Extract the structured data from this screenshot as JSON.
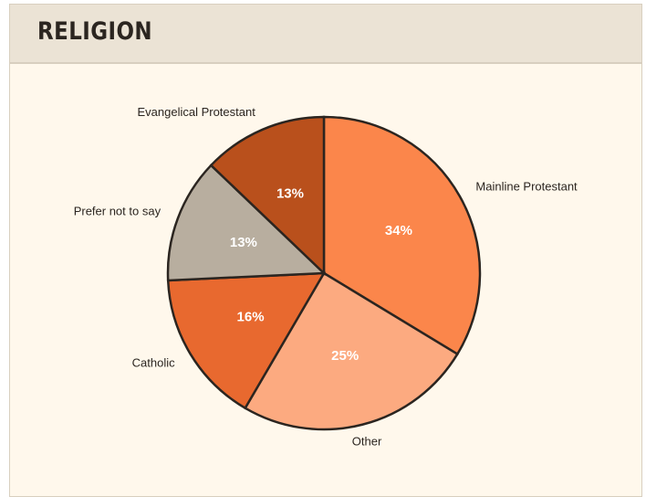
{
  "chart_data": {
    "type": "pie",
    "title": "RELIGION",
    "categories": [
      "Mainline Protestant",
      "Other",
      "Catholic",
      "Prefer not to say",
      "Evangelical Protestant"
    ],
    "values": [
      34,
      25,
      16,
      13,
      13
    ],
    "value_labels": [
      "34%",
      "25%",
      "16%",
      "13%",
      "13%"
    ],
    "colors": [
      "#fb864b",
      "#fcaa80",
      "#e8692f",
      "#b8ae9f",
      "#b9501c"
    ]
  }
}
